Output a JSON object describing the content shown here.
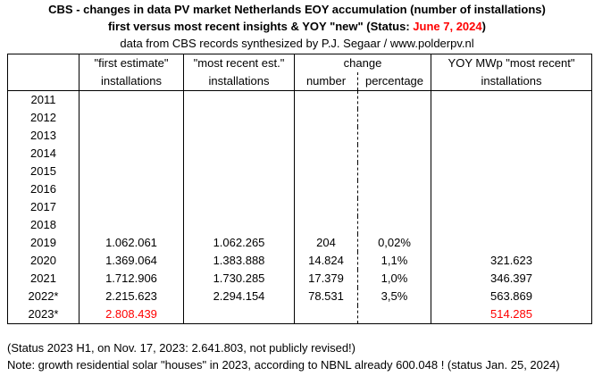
{
  "title": {
    "line1": "CBS - changes in data PV market Netherlands EOY accumulation (number of installations)",
    "line2_prefix": "first versus most recent insights & YOY \"new\" (Status: ",
    "line2_date": "June 7, 2024",
    "line2_suffix": ")",
    "subtitle": "data from CBS records synthesized by P.J. Segaar / www.polderpv.nl"
  },
  "headers": {
    "first_top": "\"first estimate\"",
    "first_bottom": "installations",
    "recent_top": "\"most recent est.\"",
    "recent_bottom": "installations",
    "change_top": "change",
    "change_number": "number",
    "change_percentage": "percentage",
    "yoy_top": "YOY MWp \"most recent\"",
    "yoy_bottom": "installations"
  },
  "rows": [
    {
      "year": "2011",
      "first": "",
      "recent": "",
      "number": "",
      "percentage": "",
      "yoy": ""
    },
    {
      "year": "2012",
      "first": "",
      "recent": "",
      "number": "",
      "percentage": "",
      "yoy": ""
    },
    {
      "year": "2013",
      "first": "",
      "recent": "",
      "number": "",
      "percentage": "",
      "yoy": ""
    },
    {
      "year": "2014",
      "first": "",
      "recent": "",
      "number": "",
      "percentage": "",
      "yoy": ""
    },
    {
      "year": "2015",
      "first": "",
      "recent": "",
      "number": "",
      "percentage": "",
      "yoy": ""
    },
    {
      "year": "2016",
      "first": "",
      "recent": "",
      "number": "",
      "percentage": "",
      "yoy": ""
    },
    {
      "year": "2017",
      "first": "",
      "recent": "",
      "number": "",
      "percentage": "",
      "yoy": ""
    },
    {
      "year": "2018",
      "first": "",
      "recent": "",
      "number": "",
      "percentage": "",
      "yoy": ""
    },
    {
      "year": "2019",
      "first": "1.062.061",
      "recent": "1.062.265",
      "number": "204",
      "percentage": "0,02%",
      "yoy": ""
    },
    {
      "year": "2020",
      "first": "1.369.064",
      "recent": "1.383.888",
      "number": "14.824",
      "percentage": "1,1%",
      "yoy": "321.623"
    },
    {
      "year": "2021",
      "first": "1.712.906",
      "recent": "1.730.285",
      "number": "17.379",
      "percentage": "1,0%",
      "yoy": "346.397"
    },
    {
      "year": "2022*",
      "first": "2.215.623",
      "recent": "2.294.154",
      "number": "78.531",
      "percentage": "3,5%",
      "yoy": "563.869"
    },
    {
      "year": "2023*",
      "first": "2.808.439",
      "recent": "",
      "number": "",
      "percentage": "",
      "yoy": "514.285"
    }
  ],
  "colors": {
    "highlight": "#ff0000",
    "text": "#000000",
    "border": "#000000"
  },
  "notes": {
    "line1": "(Status 2023 H1, on Nov. 17, 2023: 2.641.803, not publicly revised!)",
    "line2": "Note: growth residential solar \"houses\" in 2023, according to NBNL already 600.048 ! (status Jan. 25, 2024)"
  }
}
